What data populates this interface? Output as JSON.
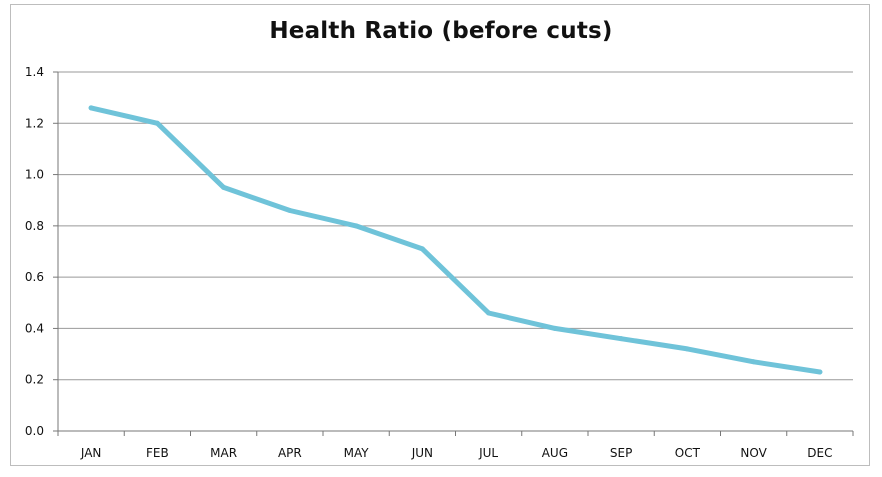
{
  "chart_data": {
    "type": "line",
    "title": "Health Ratio (before cuts)",
    "xlabel": "",
    "ylabel": "",
    "categories": [
      "JAN",
      "FEB",
      "MAR",
      "APR",
      "MAY",
      "JUN",
      "JUL",
      "AUG",
      "SEP",
      "OCT",
      "NOV",
      "DEC"
    ],
    "series": [
      {
        "values": [
          1.26,
          1.2,
          0.95,
          0.86,
          0.8,
          0.71,
          0.46,
          0.4,
          0.36,
          0.32,
          0.27,
          0.23
        ],
        "color": "#6fc3d9"
      }
    ],
    "ylim": [
      0,
      1.4
    ],
    "yticks": [
      0.0,
      0.2,
      0.4,
      0.6,
      0.8,
      1.0,
      1.2,
      1.4
    ],
    "ytick_labels": [
      "0.0",
      "0.2",
      "0.4",
      "0.6",
      "0.8",
      "1.0",
      "1.2",
      "1.4"
    ],
    "grid": true,
    "legend": "none",
    "colors": {
      "line": "#6fc3d9",
      "grid": "#999999",
      "axis": "#777777"
    }
  }
}
